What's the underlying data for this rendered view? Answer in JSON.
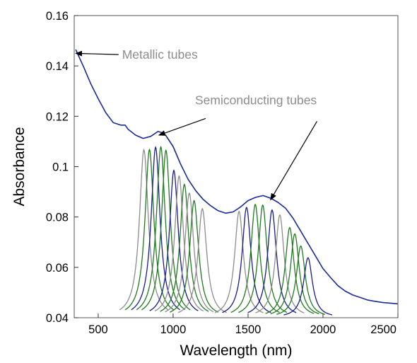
{
  "chart_data": {
    "type": "line",
    "xlabel": "Wavelength (nm)",
    "ylabel": "Absorbance",
    "xlim": [
      340,
      2500
    ],
    "ylim": [
      0.04,
      0.16
    ],
    "x_ticks": [
      {
        "value": 500,
        "label": "500"
      },
      {
        "value": 1000,
        "label": "1000"
      },
      {
        "value": 1500,
        "label": "1500"
      },
      {
        "value": 2000,
        "label": "2000"
      },
      {
        "value": 2500,
        "label": "2500"
      }
    ],
    "y_ticks": [
      {
        "value": 0.04,
        "label": "0.04"
      },
      {
        "value": 0.06,
        "label": "0.06"
      },
      {
        "value": 0.08,
        "label": "0.08"
      },
      {
        "value": 0.1,
        "label": "0.1"
      },
      {
        "value": 0.12,
        "label": "0.12"
      },
      {
        "value": 0.14,
        "label": "0.14"
      },
      {
        "value": 0.16,
        "label": "0.16"
      }
    ],
    "grid": false,
    "legend": "none",
    "colors": {
      "measured": "#1a2a9c",
      "blue": "#1a1a8c",
      "green": "#1f7a1f",
      "gray": "#8c8c8c",
      "axis": "#555555"
    },
    "baseline": 0.04,
    "measured": {
      "x": [
        350,
        400,
        450,
        500,
        550,
        600,
        650,
        680,
        700,
        750,
        800,
        850,
        900,
        925,
        950,
        1000,
        1050,
        1100,
        1150,
        1200,
        1250,
        1300,
        1350,
        1400,
        1450,
        1500,
        1550,
        1600,
        1650,
        1700,
        1750,
        1800,
        1850,
        1900,
        1950,
        2000,
        2050,
        2100,
        2150,
        2200,
        2250,
        2300,
        2350,
        2400,
        2450,
        2500
      ],
      "y": [
        0.1465,
        0.14,
        0.133,
        0.127,
        0.1215,
        0.1175,
        0.1165,
        0.1165,
        0.1148,
        0.1125,
        0.1112,
        0.112,
        0.114,
        0.1135,
        0.1125,
        0.108,
        0.101,
        0.095,
        0.0905,
        0.087,
        0.0845,
        0.0825,
        0.0815,
        0.082,
        0.084,
        0.0865,
        0.0878,
        0.0885,
        0.0875,
        0.0858,
        0.0835,
        0.0795,
        0.0745,
        0.0695,
        0.0645,
        0.0595,
        0.056,
        0.0527,
        0.0505,
        0.049,
        0.048,
        0.047,
        0.0465,
        0.046,
        0.0458,
        0.0455
      ]
    },
    "peaks": [
      {
        "center": 805,
        "height": 0.1067,
        "color": "gray"
      },
      {
        "center": 842,
        "height": 0.1068,
        "color": "green"
      },
      {
        "center": 883,
        "height": 0.1077,
        "color": "blue"
      },
      {
        "center": 918,
        "height": 0.1078,
        "color": "green"
      },
      {
        "center": 952,
        "height": 0.1065,
        "color": "green"
      },
      {
        "center": 1005,
        "height": 0.0985,
        "color": "blue"
      },
      {
        "center": 1040,
        "height": 0.0963,
        "color": "gray"
      },
      {
        "center": 1075,
        "height": 0.093,
        "color": "green"
      },
      {
        "center": 1108,
        "height": 0.0895,
        "color": "gray"
      },
      {
        "center": 1140,
        "height": 0.0865,
        "color": "green"
      },
      {
        "center": 1195,
        "height": 0.0833,
        "color": "gray"
      },
      {
        "center": 1440,
        "height": 0.0822,
        "color": "gray"
      },
      {
        "center": 1490,
        "height": 0.0838,
        "color": "blue"
      },
      {
        "center": 1548,
        "height": 0.085,
        "color": "green"
      },
      {
        "center": 1598,
        "height": 0.0847,
        "color": "green"
      },
      {
        "center": 1660,
        "height": 0.0828,
        "color": "blue"
      },
      {
        "center": 1712,
        "height": 0.0808,
        "color": "gray"
      },
      {
        "center": 1778,
        "height": 0.0758,
        "color": "green"
      },
      {
        "center": 1812,
        "height": 0.0733,
        "color": "green"
      },
      {
        "center": 1852,
        "height": 0.0685,
        "color": "green"
      },
      {
        "center": 1900,
        "height": 0.0638,
        "color": "blue"
      }
    ],
    "peak_halfwidth": 36,
    "annotations": [
      {
        "text": "Metallic tubes",
        "point_x": 350,
        "point_y": 0.145,
        "text_anchor_x": 650,
        "text_anchor_y": 0.1445
      },
      {
        "text": "Semiconducting tubes",
        "point_x": 905,
        "point_y": 0.1125,
        "text_anchor_x": 1170,
        "text_anchor_y": 0.1225
      },
      {
        "text": "",
        "point_x": 1650,
        "point_y": 0.0868,
        "text_anchor_x": 1960,
        "text_anchor_y": 0.118
      }
    ]
  }
}
